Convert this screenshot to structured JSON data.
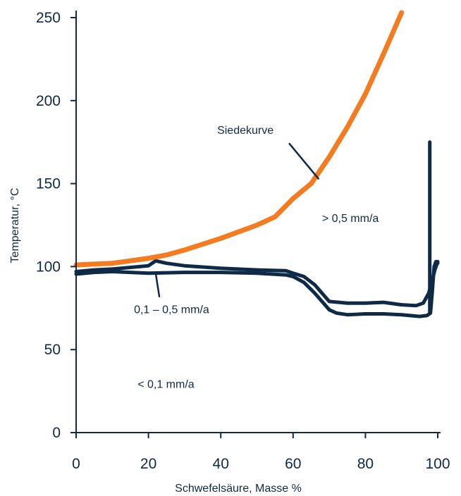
{
  "chart_data": {
    "type": "line",
    "title": "",
    "xlabel": "Schwefelsäure, Masse %",
    "ylabel": "Temperatur, °C",
    "xlim": [
      0,
      100
    ],
    "ylim": [
      0,
      250
    ],
    "xticks": [
      0,
      20,
      40,
      60,
      80,
      100
    ],
    "yticks": [
      0,
      50,
      100,
      150,
      200,
      250
    ],
    "grid": false,
    "legend": "none",
    "colors": {
      "boiling": "#f47b20",
      "iso": "#0e2a47",
      "axis": "#0e2a47"
    },
    "series": [
      {
        "name": "Siedekurve",
        "color": "#f47b20",
        "x": [
          0,
          10,
          20,
          25,
          30,
          40,
          50,
          55,
          60,
          65,
          70,
          75,
          80,
          85,
          90
        ],
        "y": [
          101,
          102,
          105,
          107,
          110,
          117,
          125,
          130,
          141,
          150,
          166,
          184,
          204,
          228,
          253
        ]
      },
      {
        "name": "",
        "color": "#0e2a47",
        "x": [
          0,
          5,
          10,
          20,
          22,
          25,
          30,
          40,
          50,
          58,
          60,
          63,
          66,
          68,
          70,
          75,
          80,
          85,
          90,
          94,
          96,
          97.5,
          98.5,
          99.2,
          100
        ],
        "y": [
          97,
          98,
          98.5,
          100.5,
          103.5,
          102,
          100.5,
          99,
          98,
          97.5,
          96,
          94,
          89,
          84,
          79,
          78,
          78,
          78.5,
          77,
          76.5,
          78,
          84,
          92,
          98,
          103
        ]
      },
      {
        "name": "",
        "color": "#0e2a47",
        "x": [
          0,
          5,
          10,
          20,
          30,
          40,
          50,
          58,
          60,
          63,
          66,
          68,
          70,
          72,
          75,
          80,
          85,
          90,
          95,
          97,
          98,
          98.5,
          99,
          99.5,
          100
        ],
        "y": [
          95.5,
          96.5,
          97,
          96,
          96.5,
          96.5,
          96,
          95,
          94,
          90.5,
          84,
          79,
          74,
          72,
          71,
          71.5,
          71.5,
          71,
          70,
          70.5,
          72,
          85,
          100,
          103,
          102
        ]
      },
      {
        "name": "",
        "color": "#0e2a47",
        "x": [
          97.8,
          97.8
        ],
        "y": [
          72,
          175
        ]
      }
    ],
    "annotations": [
      {
        "text": "Siedekurve",
        "x": 39,
        "y": 180
      },
      {
        "text": "> 0,5 mm/a",
        "x": 68,
        "y": 127
      },
      {
        "text": "0,1 – 0,5 mm/a",
        "x": 16,
        "y": 72
      },
      {
        "text": "< 0,1 mm/a",
        "x": 17,
        "y": 27
      }
    ],
    "leaders": [
      {
        "from": [
          59,
          174
        ],
        "to": [
          67,
          153
        ]
      },
      {
        "from": [
          23,
          82
        ],
        "to": [
          22,
          96
        ]
      }
    ]
  }
}
